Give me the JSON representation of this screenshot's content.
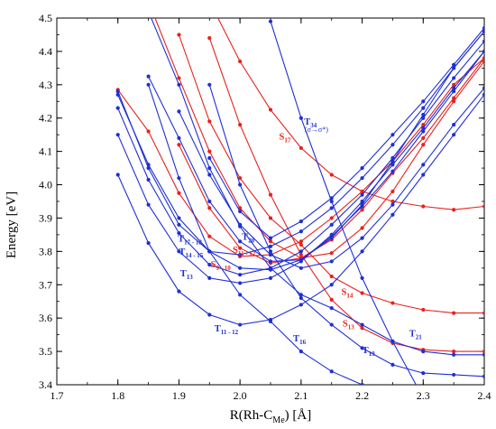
{
  "chart_data": {
    "type": "line",
    "xlabel": "R(Rh-C",
    "xlabel_sub": "Me",
    "xlabel_unit": ") [Å]",
    "ylabel": "Energy [eV]",
    "xlim": [
      1.7,
      2.4
    ],
    "ylim": [
      3.4,
      4.5
    ],
    "xticks": [
      1.7,
      1.8,
      1.9,
      2.0,
      2.1,
      2.2,
      2.3,
      2.4
    ],
    "yticks": [
      3.4,
      3.5,
      3.6,
      3.7,
      3.8,
      3.9,
      4.0,
      4.1,
      4.2,
      4.3,
      4.4,
      4.5
    ],
    "grid": false,
    "series": [
      {
        "color": "#e8211c",
        "x": [
          1.8,
          1.85,
          1.9,
          1.95,
          2.0,
          2.05,
          2.1,
          2.15,
          2.2,
          2.25,
          2.3,
          2.35,
          2.4
        ],
        "y": [
          4.285,
          4.16,
          3.975,
          3.845,
          3.785,
          3.79,
          3.83,
          3.9,
          3.98,
          4.07,
          4.18,
          4.3,
          4.38
        ]
      },
      {
        "color": "#e8211c",
        "x": [
          1.9,
          1.95,
          2.0,
          2.05,
          2.1,
          2.15,
          2.2,
          2.25,
          2.3,
          2.35,
          2.4
        ],
        "y": [
          4.12,
          3.93,
          3.81,
          3.765,
          3.78,
          3.835,
          3.925,
          4.035,
          4.14,
          4.26,
          4.38
        ]
      },
      {
        "color": "#e8211c",
        "x": [
          1.85,
          1.9,
          1.95,
          2.0,
          2.05,
          2.1,
          2.15,
          2.2,
          2.25,
          2.3,
          2.35,
          2.4
        ],
        "y": [
          4.55,
          4.32,
          4.1,
          3.93,
          3.83,
          3.78,
          3.795,
          3.87,
          3.98,
          4.12,
          4.25,
          4.37
        ]
      },
      {
        "color": "#e8211c",
        "x": [
          1.9,
          1.95,
          2.0,
          2.05,
          2.1,
          2.15,
          2.2,
          2.25,
          2.3,
          2.35,
          2.4
        ],
        "y": [
          4.45,
          4.19,
          4.02,
          3.9,
          3.82,
          3.725,
          3.675,
          3.645,
          3.625,
          3.615,
          3.615
        ]
      },
      {
        "color": "#e8211c",
        "x": [
          1.95,
          2.0,
          2.05,
          2.1,
          2.15,
          2.2,
          2.25,
          2.3,
          2.35,
          2.4
        ],
        "y": [
          4.44,
          4.18,
          3.97,
          3.79,
          3.655,
          3.57,
          3.525,
          3.505,
          3.5,
          3.5
        ]
      },
      {
        "color": "#e8211c",
        "x": [
          1.95,
          2.0,
          2.05,
          2.1,
          2.15,
          2.2,
          2.25,
          2.3,
          2.35,
          2.4
        ],
        "y": [
          4.55,
          4.37,
          4.225,
          4.11,
          4.03,
          3.98,
          3.95,
          3.935,
          3.925,
          3.935
        ]
      },
      {
        "color": "#1f2fd6",
        "x": [
          1.8,
          1.85,
          1.9,
          1.95,
          2.0,
          2.05,
          2.1,
          2.15,
          2.2,
          2.25,
          2.3,
          2.35,
          2.4
        ],
        "y": [
          4.03,
          3.825,
          3.68,
          3.61,
          3.58,
          3.595,
          3.64,
          3.7,
          3.8,
          3.91,
          4.03,
          4.15,
          4.27
        ]
      },
      {
        "color": "#1f2fd6",
        "x": [
          1.8,
          1.85,
          1.9,
          1.95,
          2.0,
          2.05,
          2.1,
          2.15,
          2.2,
          2.25,
          2.3,
          2.35,
          2.4
        ],
        "y": [
          4.15,
          3.94,
          3.8,
          3.72,
          3.705,
          3.72,
          3.77,
          3.85,
          3.95,
          4.06,
          4.17,
          4.29,
          4.4
        ]
      },
      {
        "color": "#1f2fd6",
        "x": [
          1.8,
          1.85,
          1.9,
          1.95,
          2.0,
          2.05,
          2.1,
          2.15,
          2.2,
          2.25,
          2.3,
          2.35,
          2.4
        ],
        "y": [
          4.23,
          4.015,
          3.855,
          3.76,
          3.73,
          3.75,
          3.8,
          3.88,
          3.97,
          4.08,
          4.2,
          4.32,
          4.43
        ]
      },
      {
        "color": "#1f2fd6",
        "x": [
          1.8,
          1.85,
          1.9,
          1.95,
          2.0,
          2.05,
          2.1,
          2.15,
          2.2,
          2.25,
          2.3,
          2.35,
          2.4
        ],
        "y": [
          4.27,
          4.06,
          3.9,
          3.8,
          3.75,
          3.745,
          3.775,
          3.845,
          3.935,
          4.04,
          4.16,
          4.28,
          4.4
        ]
      },
      {
        "color": "#1f2fd6",
        "x": [
          1.85,
          1.9,
          1.95,
          2.0,
          2.05,
          2.1,
          2.15,
          2.2,
          2.25,
          2.3,
          2.35,
          2.4
        ],
        "y": [
          4.325,
          4.14,
          3.95,
          3.83,
          3.77,
          3.775,
          3.84,
          3.94,
          4.07,
          4.21,
          4.35,
          4.46
        ]
      },
      {
        "color": "#1f2fd6",
        "x": [
          1.9,
          1.95,
          2.0,
          2.05,
          2.1,
          2.15,
          2.2,
          2.25,
          2.3,
          2.35,
          2.4
        ],
        "y": [
          4.22,
          4.03,
          3.88,
          3.79,
          3.75,
          3.77,
          3.84,
          3.94,
          4.06,
          4.18,
          4.29
        ]
      },
      {
        "color": "#1f2fd6",
        "x": [
          1.8,
          1.85,
          1.9,
          1.95,
          2.0,
          2.05,
          2.1,
          2.15,
          2.2,
          2.25,
          2.3,
          2.35,
          2.4
        ],
        "y": [
          4.28,
          4.05,
          3.88,
          3.8,
          3.79,
          3.815,
          3.86,
          3.93,
          4.02,
          4.12,
          4.23,
          4.35,
          4.46
        ]
      },
      {
        "color": "#1f2fd6",
        "x": [
          1.95,
          2.0,
          2.05,
          2.1,
          2.15,
          2.2,
          2.25,
          2.3,
          2.35,
          2.4
        ],
        "y": [
          4.08,
          3.92,
          3.84,
          3.89,
          3.96,
          4.05,
          4.15,
          4.25,
          4.36,
          4.47
        ]
      },
      {
        "color": "#1f2fd6",
        "x": [
          1.85,
          1.9,
          1.95,
          2.0,
          2.05,
          2.1,
          2.15,
          2.2,
          2.25,
          2.3,
          2.35,
          2.4
        ],
        "y": [
          4.52,
          4.3,
          4.05,
          3.875,
          3.75,
          3.67,
          3.63,
          3.58,
          3.53,
          3.5,
          3.49,
          3.49
        ]
      },
      {
        "color": "#1f2fd6",
        "x": [
          1.95,
          2.0,
          2.05,
          2.1,
          2.15,
          2.2,
          2.25,
          2.3,
          2.35,
          2.4
        ],
        "y": [
          4.3,
          4.0,
          3.8,
          3.66,
          3.58,
          3.51,
          3.46,
          3.435,
          3.43,
          3.425
        ]
      },
      {
        "color": "#1f2fd6",
        "x": [
          1.85,
          1.9,
          1.95,
          2.0,
          2.05,
          2.1,
          2.15,
          2.2
        ],
        "y": [
          4.3,
          4.02,
          3.8,
          3.67,
          3.59,
          3.5,
          3.44,
          3.4
        ]
      },
      {
        "color": "#1f2fd6",
        "x": [
          2.05,
          2.1,
          2.15,
          2.2,
          2.25,
          2.3
        ],
        "y": [
          4.49,
          4.2,
          3.95,
          3.72,
          3.53,
          3.36
        ]
      }
    ],
    "labels": [
      {
        "color": "#1f2fd6",
        "main": "T",
        "sub": "20",
        "x": 2.003,
        "y": 3.835
      },
      {
        "color": "#1f2fd6",
        "main": "T",
        "sub": "17 - 18",
        "x": 1.898,
        "y": 3.83
      },
      {
        "color": "#1f2fd6",
        "main": "T",
        "sub": "14 - 15",
        "x": 1.9,
        "y": 3.79
      },
      {
        "color": "#1f2fd6",
        "main": "T",
        "sub": "13",
        "x": 1.902,
        "y": 3.725
      },
      {
        "color": "#e8211c",
        "main": "S",
        "sub": "11 - 12",
        "x": 1.988,
        "y": 3.795
      },
      {
        "color": "#e8211c",
        "main": "S",
        "sub": "9 - 10",
        "x": 1.952,
        "y": 3.752
      },
      {
        "color": "#1f2fd6",
        "main": "T",
        "sub": "11 - 12",
        "x": 1.958,
        "y": 3.56
      },
      {
        "color": "#1f2fd6",
        "main": "T",
        "sub": "16",
        "x": 2.087,
        "y": 3.53
      },
      {
        "color": "#1f2fd6",
        "main": "T",
        "sub": "34",
        "x": 2.105,
        "y": 4.18
      },
      {
        "color": "#e8211c",
        "main": "S",
        "sub": "17",
        "x": 2.064,
        "y": 4.135
      },
      {
        "color": "#e8211c",
        "main": "S",
        "sub": "14",
        "x": 2.166,
        "y": 3.67
      },
      {
        "color": "#e8211c",
        "main": "S",
        "sub": "13",
        "x": 2.168,
        "y": 3.575
      },
      {
        "color": "#1f2fd6",
        "main": "T",
        "sub": "21",
        "x": 2.277,
        "y": 3.545
      },
      {
        "color": "#1f2fd6",
        "main": "T",
        "sub": "19",
        "x": 2.2,
        "y": 3.495
      }
    ],
    "note": "(σ→σ*)"
  }
}
